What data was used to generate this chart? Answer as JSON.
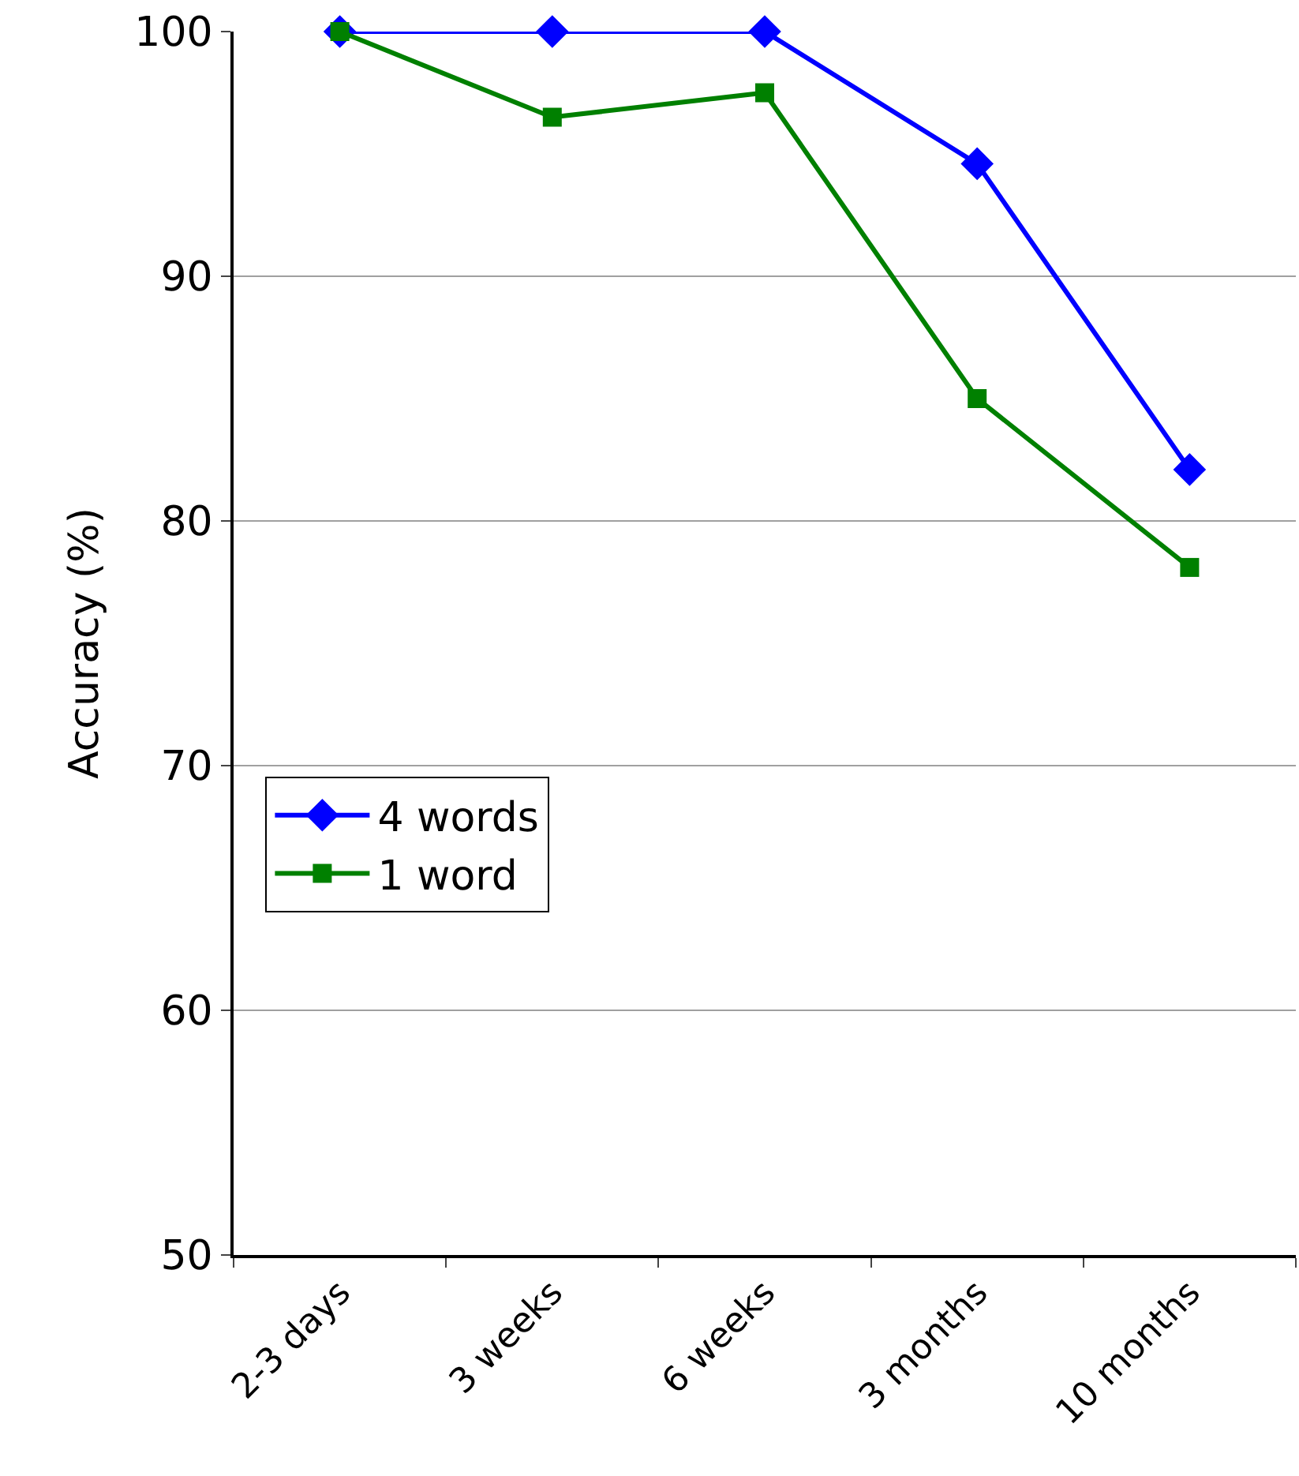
{
  "chart_data": {
    "type": "line",
    "ylabel": "Accuracy (%)",
    "categories": [
      "2-3 days",
      "3 weeks",
      "6 weeks",
      "3 months",
      "10 months"
    ],
    "series": [
      {
        "name": "4 words",
        "color": "#0000ff",
        "marker": "diamond",
        "values": [
          100,
          100,
          100,
          94.6,
          82.1
        ]
      },
      {
        "name": "1 word",
        "color": "#008000",
        "marker": "square",
        "values": [
          100,
          96.5,
          97.5,
          85.0,
          78.1
        ]
      }
    ],
    "ylim": [
      50,
      100
    ],
    "yticks": [
      50,
      60,
      70,
      80,
      90,
      100
    ],
    "grid": "y",
    "legend": "bottom left",
    "line_style": "solid"
  }
}
